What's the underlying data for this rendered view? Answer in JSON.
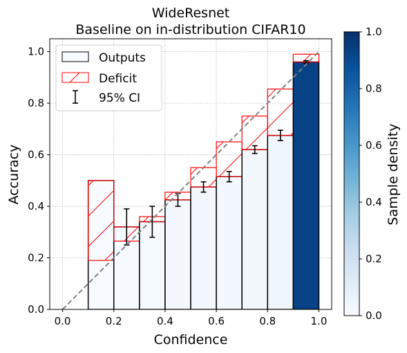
{
  "chart_data": {
    "type": "bar",
    "title": "WideResnet",
    "subtitle": "Baseline on in-distribution CIFAR10",
    "xlabel": "Confidence",
    "ylabel": "Accuracy",
    "xlim": [
      -0.05,
      1.05
    ],
    "ylim": [
      0,
      1.05
    ],
    "xticks": [
      "0.0",
      "0.2",
      "0.4",
      "0.6",
      "0.8",
      "1.0"
    ],
    "yticks": [
      "0.0",
      "0.2",
      "0.4",
      "0.6",
      "0.8",
      "1.0"
    ],
    "grid": true,
    "legend_position": "upper-left",
    "legend": {
      "outputs": "Outputs",
      "deficit": "Deficit",
      "ci": "95% CI"
    },
    "bins": [
      {
        "start": 0.0,
        "end": 0.1,
        "accuracy": 0.0,
        "expected": 0.0,
        "ci_low": null,
        "ci_high": null,
        "density": 0.0
      },
      {
        "start": 0.1,
        "end": 0.2,
        "accuracy": 0.5,
        "expected": 0.19,
        "ci_low": null,
        "ci_high": null,
        "density": 0.0
      },
      {
        "start": 0.2,
        "end": 0.3,
        "accuracy": 0.32,
        "expected": 0.265,
        "ci_low": 0.25,
        "ci_high": 0.39,
        "density": 0.01
      },
      {
        "start": 0.3,
        "end": 0.4,
        "accuracy": 0.34,
        "expected": 0.36,
        "ci_low": 0.28,
        "ci_high": 0.4,
        "density": 0.01
      },
      {
        "start": 0.4,
        "end": 0.5,
        "accuracy": 0.425,
        "expected": 0.455,
        "ci_low": 0.4,
        "ci_high": 0.45,
        "density": 0.02
      },
      {
        "start": 0.5,
        "end": 0.6,
        "accuracy": 0.475,
        "expected": 0.55,
        "ci_low": 0.455,
        "ci_high": 0.495,
        "density": 0.02
      },
      {
        "start": 0.6,
        "end": 0.7,
        "accuracy": 0.515,
        "expected": 0.65,
        "ci_low": 0.495,
        "ci_high": 0.535,
        "density": 0.02
      },
      {
        "start": 0.7,
        "end": 0.8,
        "accuracy": 0.62,
        "expected": 0.75,
        "ci_low": 0.605,
        "ci_high": 0.635,
        "density": 0.03
      },
      {
        "start": 0.8,
        "end": 0.9,
        "accuracy": 0.675,
        "expected": 0.855,
        "ci_low": 0.655,
        "ci_high": 0.695,
        "density": 0.04
      },
      {
        "start": 0.9,
        "end": 1.0,
        "accuracy": 0.96,
        "expected": 0.99,
        "ci_low": 0.955,
        "ci_high": 0.965,
        "density": 0.93
      }
    ],
    "diagonal": [
      [
        0,
        0
      ],
      [
        1,
        1
      ]
    ],
    "colorbar": {
      "label": "Sample density",
      "range": [
        0,
        1
      ],
      "ticks": [
        "0.0",
        "0.2",
        "0.4",
        "0.6",
        "0.8",
        "1.0"
      ],
      "colormap": "Blues"
    },
    "colors": {
      "outputs_edge": "#000000",
      "deficit_edge": "#ff0000",
      "diagonal": "#808080",
      "grid": "#b0b0b0"
    }
  }
}
